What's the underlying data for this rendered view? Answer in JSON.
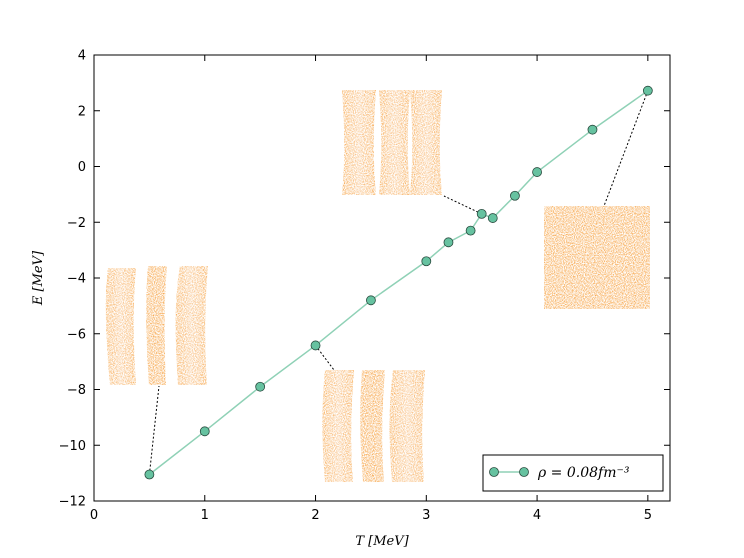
{
  "chart_data": {
    "type": "line",
    "xlabel": "T [MeV]",
    "ylabel": "E [MeV]",
    "xlim": [
      0,
      5.2
    ],
    "ylim": [
      -12,
      4
    ],
    "xticks": [
      0,
      1,
      2,
      3,
      4,
      5
    ],
    "xtick_labels": [
      "0",
      "1",
      "2",
      "3",
      "4",
      "5"
    ],
    "yticks": [
      -12,
      -10,
      -8,
      -6,
      -4,
      -2,
      0,
      2,
      4
    ],
    "ytick_labels": [
      "−12",
      "−10",
      "−8",
      "−6",
      "−4",
      "−2",
      "0",
      "2",
      "4"
    ],
    "grid": false,
    "legend_position": "lower-right",
    "series": [
      {
        "name": "ρ = 0.08fm⁻³",
        "x": [
          0.5,
          1.0,
          1.5,
          2.0,
          2.5,
          3.0,
          3.2,
          3.4,
          3.5,
          3.6,
          3.8,
          4.0,
          4.5,
          5.0
        ],
        "y": [
          -11.05,
          -9.5,
          -7.9,
          -6.42,
          -4.8,
          -3.4,
          -2.72,
          -2.3,
          -1.7,
          -1.85,
          -1.05,
          -0.2,
          1.32,
          2.72
        ],
        "line_color": "#8fd1b6",
        "marker_color": "#66c2a0",
        "marker_edge": "#2a4b3f"
      }
    ],
    "insets": [
      {
        "name": "inset-slabs-T05",
        "anchor": [
          0.5,
          -11.05
        ]
      },
      {
        "name": "inset-slabs-T2",
        "anchor": [
          2.0,
          -6.42
        ]
      },
      {
        "name": "inset-slabs-T35",
        "anchor": [
          3.5,
          -1.7
        ]
      },
      {
        "name": "inset-uniform-T5",
        "anchor": [
          5.0,
          2.72
        ]
      }
    ]
  },
  "colors": {
    "cloud": "#f7a548",
    "cloud_edge": "#f59a3a"
  }
}
